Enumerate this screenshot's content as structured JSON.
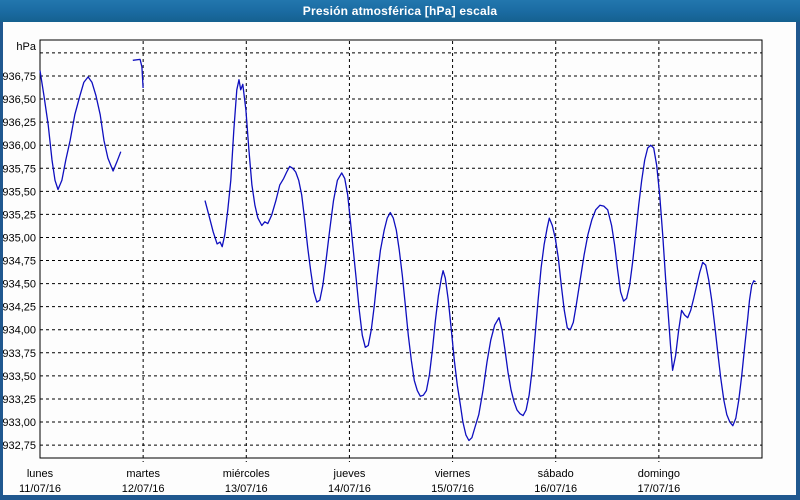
{
  "chart_data": {
    "type": "line",
    "title": "Presión atmosférica [hPa] escala",
    "grid": "dashed",
    "legend": "none",
    "y_axis": {
      "unit": "hPa",
      "min": 932.61,
      "max": 937.14,
      "ticks": [
        {
          "value": 937.0,
          "label": ""
        },
        {
          "value": 936.75,
          "label": "936,75"
        },
        {
          "value": 936.5,
          "label": "936,50"
        },
        {
          "value": 936.25,
          "label": "936,25"
        },
        {
          "value": 936.0,
          "label": "936,00"
        },
        {
          "value": 935.75,
          "label": "935,75"
        },
        {
          "value": 935.5,
          "label": "935,50"
        },
        {
          "value": 935.25,
          "label": "935,25"
        },
        {
          "value": 935.0,
          "label": "935,00"
        },
        {
          "value": 934.75,
          "label": "934,75"
        },
        {
          "value": 934.5,
          "label": "934,50"
        },
        {
          "value": 934.25,
          "label": "934,25"
        },
        {
          "value": 934.0,
          "label": "934,00"
        },
        {
          "value": 933.75,
          "label": "933,75"
        },
        {
          "value": 933.5,
          "label": "933,50"
        },
        {
          "value": 933.25,
          "label": "933,25"
        },
        {
          "value": 933.0,
          "label": "933,00"
        },
        {
          "value": 932.75,
          "label": "932,75"
        }
      ]
    },
    "x_axis": {
      "min": 0,
      "max": 168,
      "unit": "hours",
      "days": [
        {
          "label": "lunes",
          "date": "11/07/16",
          "start_hour": 0
        },
        {
          "label": "martes",
          "date": "12/07/16",
          "start_hour": 24
        },
        {
          "label": "miércoles",
          "date": "13/07/16",
          "start_hour": 48
        },
        {
          "label": "jueves",
          "date": "14/07/16",
          "start_hour": 72
        },
        {
          "label": "viernes",
          "date": "15/07/16",
          "start_hour": 96
        },
        {
          "label": "sábado",
          "date": "16/07/16",
          "start_hour": 120
        },
        {
          "label": "domingo",
          "date": "17/07/16",
          "start_hour": 144
        }
      ]
    },
    "series": [
      {
        "name": "Presión atmosférica",
        "color": "#0f0fbf",
        "segments": [
          [
            [
              0,
              936.81
            ],
            [
              0.9,
              936.54
            ],
            [
              1.9,
              936.22
            ],
            [
              2.8,
              935.84
            ],
            [
              3.5,
              935.62
            ],
            [
              4.2,
              935.52
            ],
            [
              5.1,
              935.62
            ],
            [
              6,
              935.84
            ],
            [
              7,
              936.05
            ],
            [
              8.1,
              936.33
            ],
            [
              9.3,
              936.54
            ],
            [
              10.2,
              936.68
            ],
            [
              11.2,
              936.74
            ],
            [
              12.1,
              936.68
            ],
            [
              13,
              936.54
            ],
            [
              14,
              936.33
            ],
            [
              14.9,
              936.05
            ],
            [
              15.8,
              935.86
            ],
            [
              17,
              935.72
            ],
            [
              17.9,
              935.82
            ],
            [
              18.8,
              935.93
            ]
          ],
          [
            [
              21.6,
              936.92
            ],
            [
              23.3,
              936.93
            ],
            [
              23.7,
              936.85
            ],
            [
              24,
              936.62
            ]
          ],
          [
            [
              38.4,
              935.4
            ],
            [
              39.3,
              935.24
            ],
            [
              40.3,
              935.06
            ],
            [
              41.2,
              934.93
            ],
            [
              41.9,
              934.95
            ],
            [
              42.4,
              934.9
            ],
            [
              43,
              935.03
            ],
            [
              43.7,
              935.3
            ],
            [
              44.4,
              935.62
            ],
            [
              45.1,
              936.16
            ],
            [
              45.8,
              936.6
            ],
            [
              46.3,
              936.71
            ],
            [
              46.7,
              936.6
            ],
            [
              47.2,
              936.66
            ],
            [
              47.9,
              936.38
            ],
            [
              48.6,
              935.95
            ],
            [
              49.3,
              935.57
            ],
            [
              50,
              935.35
            ],
            [
              50.7,
              935.21
            ],
            [
              51.6,
              935.13
            ],
            [
              52.3,
              935.17
            ],
            [
              53,
              935.15
            ],
            [
              53.9,
              935.24
            ],
            [
              54.9,
              935.4
            ],
            [
              55.8,
              935.57
            ],
            [
              56.7,
              935.64
            ],
            [
              57.4,
              935.71
            ],
            [
              58.1,
              935.77
            ],
            [
              58.8,
              935.75
            ],
            [
              59.5,
              935.71
            ],
            [
              60.2,
              935.62
            ],
            [
              60.9,
              935.46
            ],
            [
              61.6,
              935.19
            ],
            [
              62.3,
              934.89
            ],
            [
              63,
              934.63
            ],
            [
              63.7,
              934.41
            ],
            [
              64.4,
              934.3
            ],
            [
              65.1,
              934.32
            ],
            [
              65.8,
              934.48
            ],
            [
              66.5,
              934.73
            ],
            [
              67.4,
              935.08
            ],
            [
              68.3,
              935.4
            ],
            [
              69.2,
              935.62
            ],
            [
              70.2,
              935.7
            ],
            [
              70.9,
              935.64
            ],
            [
              71.6,
              935.46
            ],
            [
              72.2,
              935.19
            ],
            [
              72.9,
              934.86
            ],
            [
              73.6,
              934.54
            ],
            [
              74.3,
              934.21
            ],
            [
              75,
              933.94
            ],
            [
              75.7,
              933.81
            ],
            [
              76.4,
              933.83
            ],
            [
              77.1,
              934.0
            ],
            [
              77.8,
              934.27
            ],
            [
              78.5,
              934.59
            ],
            [
              79.2,
              934.86
            ],
            [
              80.1,
              935.08
            ],
            [
              80.8,
              935.21
            ],
            [
              81.5,
              935.27
            ],
            [
              82.2,
              935.21
            ],
            [
              82.9,
              935.08
            ],
            [
              83.6,
              934.86
            ],
            [
              84.3,
              934.59
            ],
            [
              85,
              934.27
            ],
            [
              85.7,
              933.94
            ],
            [
              86.4,
              933.67
            ],
            [
              87.1,
              933.45
            ],
            [
              87.8,
              933.34
            ],
            [
              88.5,
              933.28
            ],
            [
              89.2,
              933.29
            ],
            [
              89.9,
              933.34
            ],
            [
              90.6,
              933.51
            ],
            [
              91.3,
              933.78
            ],
            [
              92,
              934.1
            ],
            [
              92.7,
              934.37
            ],
            [
              93.4,
              934.56
            ],
            [
              93.8,
              934.64
            ],
            [
              94.3,
              934.56
            ],
            [
              95,
              934.32
            ],
            [
              95.7,
              934.0
            ],
            [
              96.4,
              933.67
            ],
            [
              97.1,
              933.4
            ],
            [
              97.8,
              933.19
            ],
            [
              98.4,
              933.0
            ],
            [
              99.1,
              932.86
            ],
            [
              99.8,
              932.8
            ],
            [
              100.5,
              932.83
            ],
            [
              101.2,
              932.94
            ],
            [
              102.1,
              933.08
            ],
            [
              103.1,
              933.35
            ],
            [
              104,
              933.65
            ],
            [
              104.9,
              933.89
            ],
            [
              105.8,
              934.05
            ],
            [
              106.8,
              934.13
            ],
            [
              107.5,
              934.0
            ],
            [
              108.2,
              933.78
            ],
            [
              108.9,
              933.54
            ],
            [
              109.6,
              933.35
            ],
            [
              110.3,
              933.22
            ],
            [
              111,
              933.13
            ],
            [
              111.7,
              933.09
            ],
            [
              112.4,
              933.07
            ],
            [
              113.1,
              933.13
            ],
            [
              113.8,
              933.29
            ],
            [
              114.5,
              933.56
            ],
            [
              115.2,
              933.94
            ],
            [
              115.9,
              934.32
            ],
            [
              116.6,
              934.67
            ],
            [
              117.3,
              934.92
            ],
            [
              118,
              935.1
            ],
            [
              118.5,
              935.21
            ],
            [
              119.2,
              935.13
            ],
            [
              119.9,
              934.99
            ],
            [
              120.6,
              934.78
            ],
            [
              121.3,
              934.48
            ],
            [
              122,
              934.21
            ],
            [
              122.7,
              934.02
            ],
            [
              123.4,
              934.0
            ],
            [
              124.1,
              934.08
            ],
            [
              124.8,
              934.27
            ],
            [
              125.7,
              934.54
            ],
            [
              126.6,
              934.81
            ],
            [
              127.5,
              935.03
            ],
            [
              128.4,
              935.19
            ],
            [
              129.3,
              935.3
            ],
            [
              130.3,
              935.35
            ],
            [
              131.2,
              935.34
            ],
            [
              132.1,
              935.3
            ],
            [
              133,
              935.13
            ],
            [
              133.7,
              934.92
            ],
            [
              134.4,
              934.65
            ],
            [
              135.1,
              934.41
            ],
            [
              135.8,
              934.31
            ],
            [
              136.5,
              934.34
            ],
            [
              137.2,
              934.48
            ],
            [
              137.9,
              934.73
            ],
            [
              138.6,
              935.03
            ],
            [
              139.3,
              935.35
            ],
            [
              140,
              935.62
            ],
            [
              140.7,
              935.84
            ],
            [
              141.4,
              935.97
            ],
            [
              142.1,
              936.0
            ],
            [
              142.8,
              935.97
            ],
            [
              143.5,
              935.78
            ],
            [
              144.2,
              935.46
            ],
            [
              144.9,
              935.03
            ],
            [
              145.6,
              934.54
            ],
            [
              146.3,
              934.1
            ],
            [
              146.7,
              933.83
            ],
            [
              147.2,
              933.56
            ],
            [
              147.9,
              933.72
            ],
            [
              148.6,
              933.99
            ],
            [
              149.3,
              934.21
            ],
            [
              150,
              934.16
            ],
            [
              150.7,
              934.13
            ],
            [
              151.4,
              934.21
            ],
            [
              152.1,
              934.34
            ],
            [
              152.8,
              934.48
            ],
            [
              153.5,
              934.62
            ],
            [
              154.2,
              934.73
            ],
            [
              154.9,
              934.7
            ],
            [
              155.6,
              934.54
            ],
            [
              156.3,
              934.32
            ],
            [
              157,
              934.05
            ],
            [
              157.7,
              933.76
            ],
            [
              158.4,
              933.48
            ],
            [
              159.1,
              933.24
            ],
            [
              159.8,
              933.08
            ],
            [
              160.5,
              933.0
            ],
            [
              161.2,
              932.96
            ],
            [
              161.9,
              933.04
            ],
            [
              162.6,
              933.24
            ],
            [
              163.3,
              933.51
            ],
            [
              164,
              933.83
            ],
            [
              164.7,
              934.13
            ],
            [
              165.1,
              934.32
            ],
            [
              165.6,
              934.48
            ],
            [
              166.1,
              934.53
            ],
            [
              166.5,
              934.52
            ]
          ]
        ]
      }
    ]
  }
}
